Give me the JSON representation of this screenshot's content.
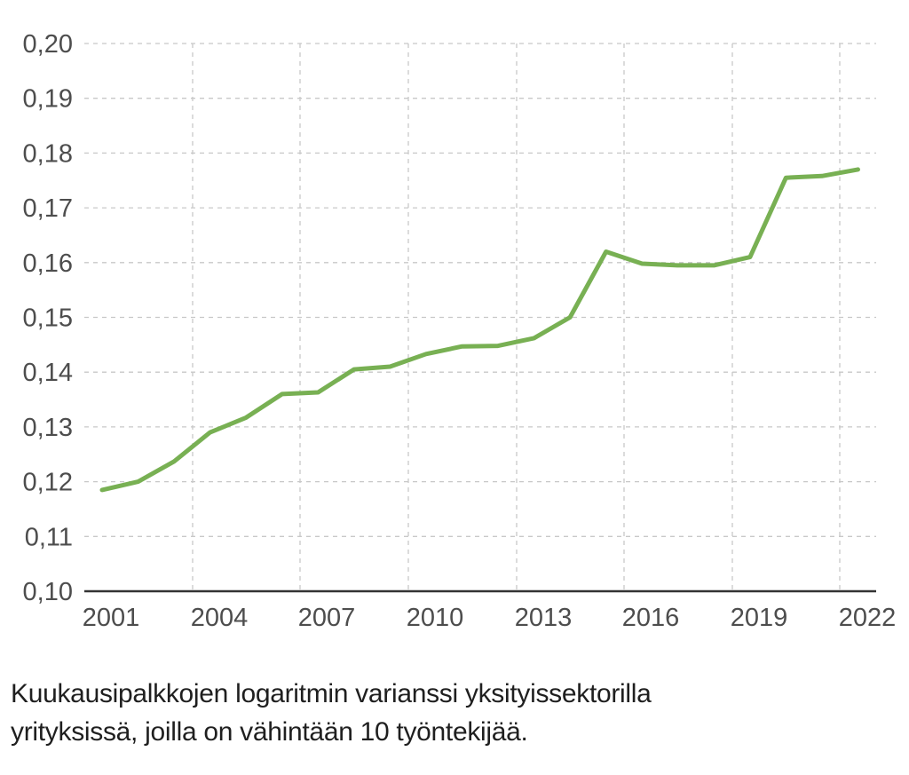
{
  "chart_data": {
    "type": "line",
    "title": "",
    "xlabel": "",
    "ylabel": "",
    "ylim": [
      0.1,
      0.2
    ],
    "xlim": [
      2001,
      2022
    ],
    "grid": true,
    "legend": null,
    "y_ticks": [
      "0,10",
      "0,11",
      "0,12",
      "0,13",
      "0,14",
      "0,15",
      "0,16",
      "0,17",
      "0,18",
      "0,19",
      "0,20"
    ],
    "x_ticks": [
      "2001",
      "2004",
      "2007",
      "2010",
      "2013",
      "2016",
      "2019",
      "2022"
    ],
    "x": [
      2001,
      2002,
      2003,
      2004,
      2005,
      2006,
      2007,
      2008,
      2009,
      2010,
      2011,
      2012,
      2013,
      2014,
      2015,
      2016,
      2017,
      2018,
      2019,
      2020,
      2021,
      2022
    ],
    "series": [
      {
        "name": "Kuukausipalkkojen logaritmin varianssi",
        "color": "#78b053",
        "values": [
          0.1185,
          0.12,
          0.1237,
          0.129,
          0.1317,
          0.136,
          0.1363,
          0.1405,
          0.141,
          0.1433,
          0.1447,
          0.1448,
          0.1462,
          0.15,
          0.162,
          0.1598,
          0.1595,
          0.1595,
          0.161,
          0.1755,
          0.1758,
          0.177
        ]
      }
    ]
  },
  "caption": {
    "line1": "Kuukausipalkkojen logaritmin varianssi yksityissektorilla",
    "line2": "yrityksissä, joilla on vähintään 10 työntekijää."
  },
  "colors": {
    "line": "#78b053",
    "axis": "#333333",
    "grid": "#c8c8c8",
    "tick_text": "#4d4d4d",
    "caption_text": "#1f1f1f"
  }
}
